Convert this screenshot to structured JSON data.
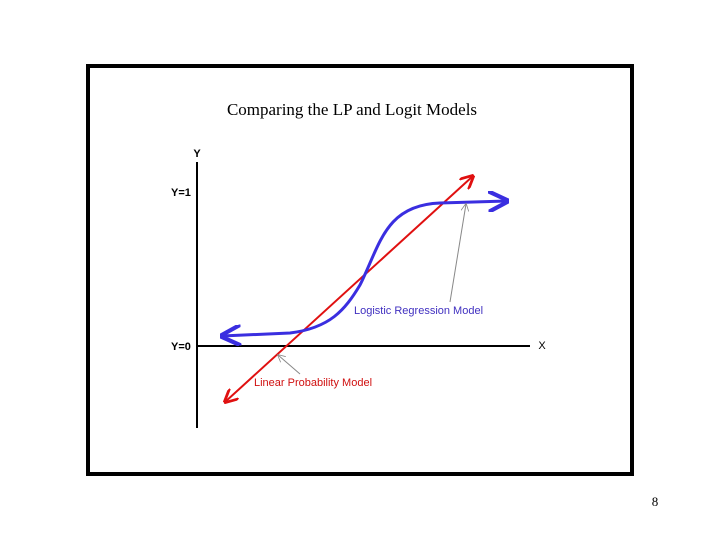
{
  "title": "Comparing the LP and Logit Models",
  "axes": {
    "y": "Y",
    "x": "X",
    "y_high": "Y=1",
    "y_low": "Y=0"
  },
  "curves": [
    {
      "label": "Logistic Regression Model"
    },
    {
      "label": "Linear Probability Model"
    }
  ],
  "page_number": "8"
}
